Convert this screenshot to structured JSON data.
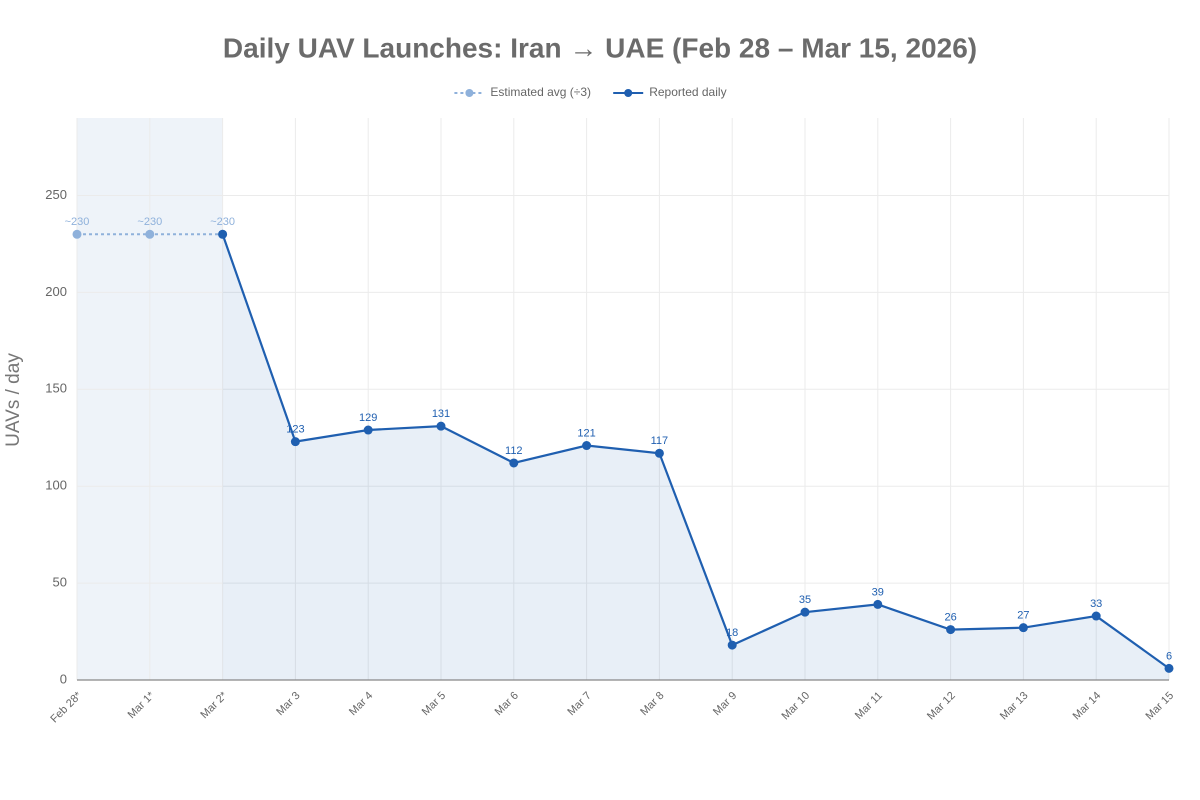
{
  "chart_data": {
    "type": "line",
    "title": "Daily UAV Launches: Iran → UAE (Feb 28 – Mar 15, 2026)",
    "y_label": "UAVs / day",
    "categories": [
      "Feb 28*",
      "Mar 1*",
      "Mar 2*",
      "Mar 3",
      "Mar 4",
      "Mar 5",
      "Mar 6",
      "Mar 7",
      "Mar 8",
      "Mar 9",
      "Mar 10",
      "Mar 11",
      "Mar 12",
      "Mar 13",
      "Mar 14",
      "Mar 15"
    ],
    "series": [
      {
        "name": "Estimated avg (÷3)",
        "color": "#8fb1db",
        "dashed": true,
        "values": [
          230,
          230,
          230,
          null,
          null,
          null,
          null,
          null,
          null,
          null,
          null,
          null,
          null,
          null,
          null,
          null
        ],
        "value_labels": [
          "~230",
          "~230",
          "~230",
          null,
          null,
          null,
          null,
          null,
          null,
          null,
          null,
          null,
          null,
          null,
          null,
          null
        ]
      },
      {
        "name": "Reported daily",
        "color": "#1f5fb0",
        "dashed": false,
        "area": true,
        "values": [
          null,
          null,
          230,
          123,
          129,
          131,
          112,
          121,
          117,
          18,
          35,
          39,
          26,
          27,
          33,
          6
        ],
        "value_labels": [
          null,
          null,
          null,
          "123",
          "129",
          "131",
          "112",
          "121",
          "117",
          "18",
          "35",
          "39",
          "26",
          "27",
          "33",
          "6"
        ]
      }
    ],
    "ylim": [
      0,
      290
    ],
    "yticks": [
      0,
      50,
      100,
      150,
      200,
      250
    ],
    "grid": true
  }
}
